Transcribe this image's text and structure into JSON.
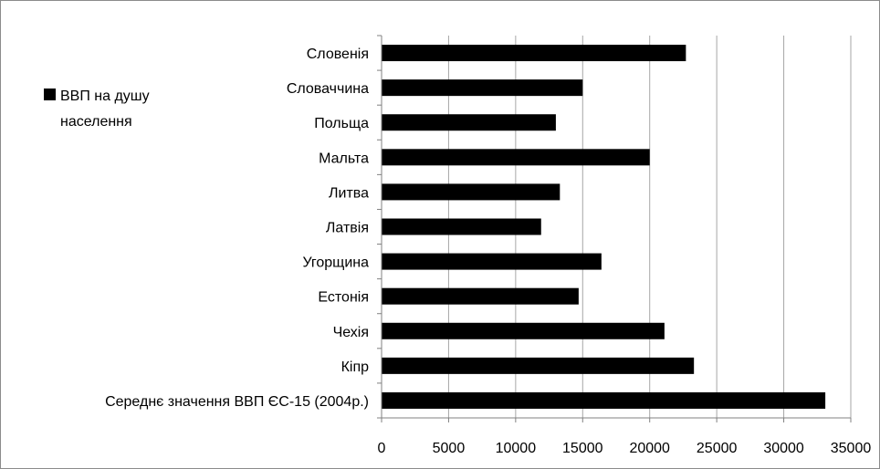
{
  "chart_data": {
    "type": "bar",
    "orientation": "horizontal",
    "title": "",
    "xlabel": "",
    "ylabel": "",
    "categories": [
      "Словенія",
      "Словаччина",
      "Польща",
      "Мальта",
      "Литва",
      "Латвія",
      "Угорщина",
      "Естонія",
      "Чехія",
      "Кіпр",
      "Середнє значення ВВП ЄС-15 (2004р.)"
    ],
    "series": [
      {
        "name": "ВВП на душу населення",
        "color": "#000000",
        "values": [
          22700,
          15000,
          13000,
          20000,
          13300,
          11900,
          16400,
          14700,
          21100,
          23300,
          33100
        ]
      }
    ],
    "xlim": [
      0,
      35000
    ],
    "xticks": [
      0,
      5000,
      10000,
      15000,
      20000,
      25000,
      30000,
      35000
    ],
    "grid": "vertical",
    "legend": {
      "placement": "top-left",
      "line1": "ВВП на душу",
      "line2": "населення"
    }
  }
}
